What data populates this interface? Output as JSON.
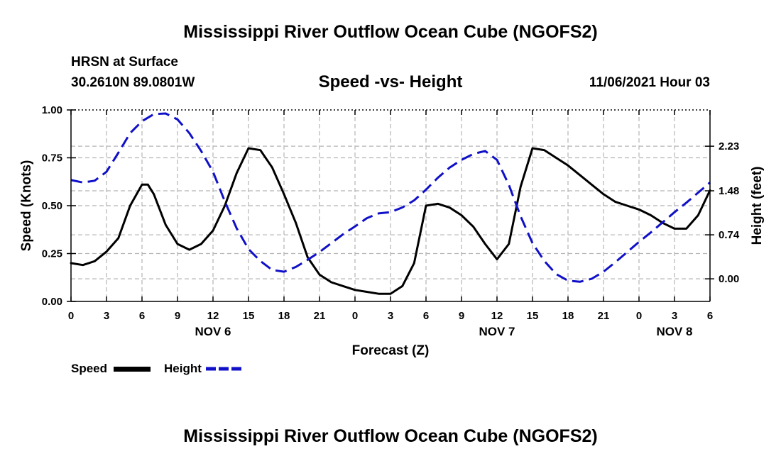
{
  "header": {
    "title": "Mississippi River Outflow Ocean Cube (NGOFS2)",
    "station": "HRSN at Surface",
    "coords": "30.2610N  89.0801W",
    "subtitle": "Speed -vs- Height",
    "datetime": "11/06/2021 Hour 03"
  },
  "footer": {
    "title": "Mississippi River Outflow Ocean Cube (NGOFS2)"
  },
  "legend": {
    "speed_label": "Speed",
    "height_label": "Height"
  },
  "colors": {
    "speed": "#000000",
    "height": "#1010c8",
    "grid": "#b4b4b4"
  },
  "chart_data": {
    "type": "line",
    "xlabel": "Forecast (Z)",
    "ylabel_left": "Speed (Knots)",
    "ylabel_right": "Height (feet)",
    "xlim": [
      0,
      54
    ],
    "ylim_left": [
      0,
      1.0
    ],
    "ylim_right": [
      -0.38,
      2.84
    ],
    "x_ticks": [
      0,
      3,
      6,
      9,
      12,
      15,
      18,
      21,
      24,
      27,
      30,
      33,
      36,
      39,
      42,
      45,
      48,
      51,
      54
    ],
    "x_tick_labels": [
      "0",
      "3",
      "6",
      "9",
      "12",
      "15",
      "18",
      "21",
      "0",
      "3",
      "6",
      "9",
      "12",
      "15",
      "18",
      "21",
      "0",
      "3",
      "6"
    ],
    "date_labels": [
      {
        "x": 12,
        "label": "NOV 6"
      },
      {
        "x": 36,
        "label": "NOV 7"
      },
      {
        "x": 51,
        "label": "NOV 8"
      }
    ],
    "y_left_ticks": [
      0.0,
      0.25,
      0.5,
      0.75,
      1.0
    ],
    "y_left_tick_labels": [
      "0.00",
      "0.25",
      "0.50",
      "0.75",
      "1.00"
    ],
    "y_right_ticks": [
      0.0,
      0.74,
      1.48,
      2.23
    ],
    "y_right_tick_labels": [
      "0.00",
      "0.74",
      "1.48",
      "2.23"
    ],
    "series": [
      {
        "name": "Speed",
        "axis": "left",
        "style": "solid",
        "x": [
          0,
          1,
          2,
          3,
          4,
          5,
          6,
          6.5,
          7,
          8,
          9,
          10,
          11,
          12,
          13,
          14,
          15,
          16,
          17,
          18,
          19,
          20,
          21,
          22,
          23,
          24,
          25,
          26,
          27,
          28,
          29,
          30,
          31,
          32,
          33,
          34,
          35,
          36,
          37,
          38,
          39,
          40,
          41,
          42,
          43,
          44,
          45,
          46,
          47,
          48,
          49,
          50,
          51,
          52,
          53,
          54
        ],
        "values": [
          0.2,
          0.19,
          0.21,
          0.26,
          0.33,
          0.5,
          0.61,
          0.61,
          0.56,
          0.4,
          0.3,
          0.27,
          0.3,
          0.37,
          0.5,
          0.67,
          0.8,
          0.79,
          0.7,
          0.56,
          0.41,
          0.23,
          0.14,
          0.1,
          0.08,
          0.06,
          0.05,
          0.04,
          0.04,
          0.08,
          0.2,
          0.5,
          0.51,
          0.49,
          0.45,
          0.39,
          0.3,
          0.22,
          0.3,
          0.6,
          0.8,
          0.79,
          0.75,
          0.71,
          0.66,
          0.61,
          0.56,
          0.52,
          0.5,
          0.48,
          0.45,
          0.41,
          0.38,
          0.38,
          0.45,
          0.58
        ]
      },
      {
        "name": "Height",
        "axis": "right",
        "style": "dashed",
        "x": [
          0,
          1,
          2,
          3,
          4,
          5,
          6,
          7,
          8,
          9,
          10,
          11,
          12,
          13,
          14,
          15,
          16,
          17,
          18,
          19,
          20,
          21,
          22,
          23,
          24,
          25,
          26,
          27,
          28,
          29,
          30,
          31,
          32,
          33,
          34,
          35,
          36,
          37,
          38,
          39,
          40,
          41,
          42,
          43,
          44,
          45,
          46,
          47,
          48,
          49,
          50,
          51,
          52,
          53,
          54
        ],
        "values": [
          1.66,
          1.62,
          1.65,
          1.8,
          2.12,
          2.45,
          2.65,
          2.77,
          2.78,
          2.68,
          2.45,
          2.15,
          1.8,
          1.3,
          0.85,
          0.5,
          0.3,
          0.15,
          0.12,
          0.2,
          0.32,
          0.45,
          0.6,
          0.75,
          0.88,
          1.02,
          1.1,
          1.12,
          1.2,
          1.32,
          1.5,
          1.7,
          1.87,
          2.0,
          2.1,
          2.15,
          2.0,
          1.58,
          1.05,
          0.6,
          0.3,
          0.08,
          -0.03,
          -0.05,
          0.0,
          0.12,
          0.28,
          0.45,
          0.62,
          0.78,
          0.95,
          1.12,
          1.28,
          1.45,
          1.62
        ]
      }
    ]
  }
}
